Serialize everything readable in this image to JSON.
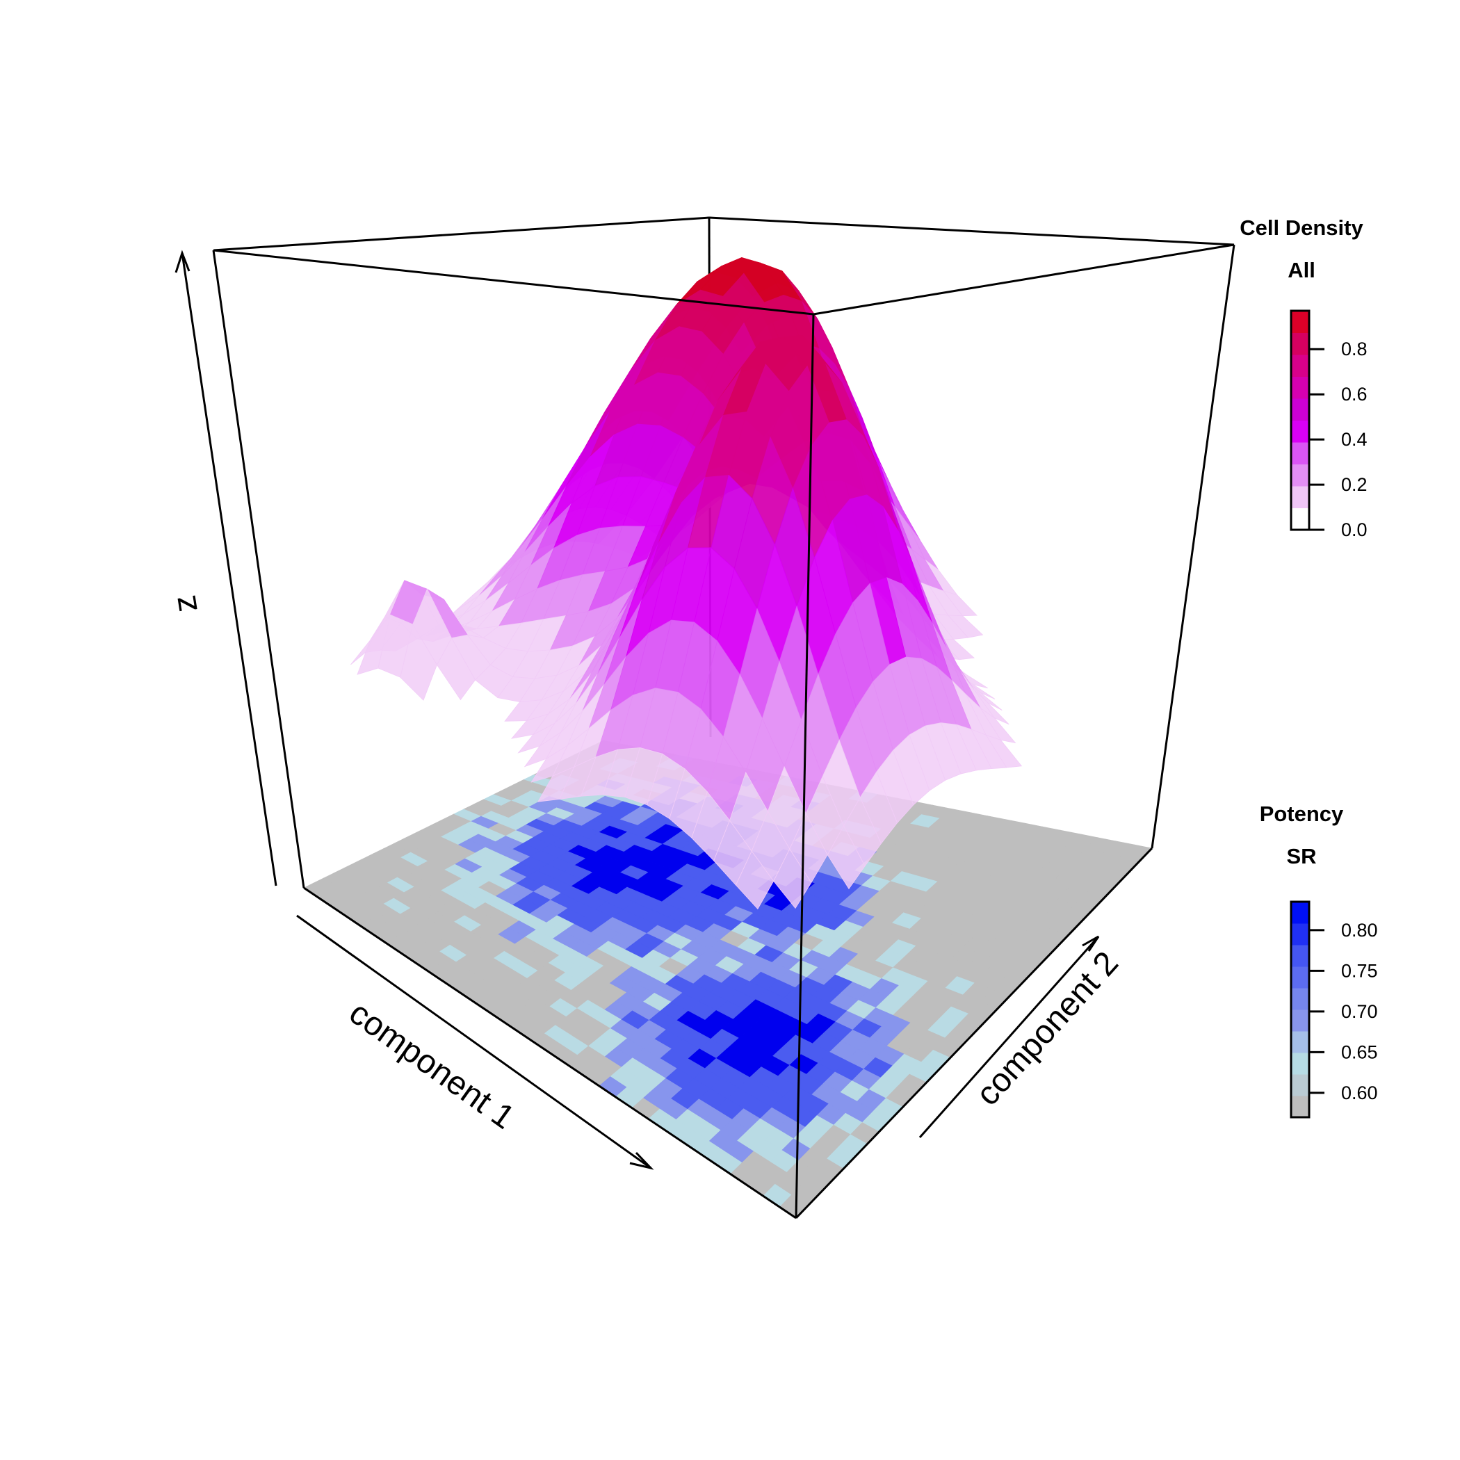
{
  "chart_data": {
    "type": "surface3d",
    "axes": {
      "x_label": "component 1",
      "y_label": "component 2",
      "z_label": "z"
    },
    "surface": {
      "name": "Cell Density",
      "description_peaks": [
        {
          "x": 0.3,
          "y": 0.25,
          "z": 0.97
        },
        {
          "x": 0.7,
          "y": 0.65,
          "z": 0.9
        }
      ],
      "colors": {
        "low": "#f1cdf7",
        "mid": "#d800f5",
        "high": "#d40024"
      }
    },
    "floor": {
      "name": "Potency SR",
      "colors": {
        "grey": "#bebebe",
        "light": "#b9dbe4",
        "mid": "#8795ed",
        "high": "#4b5cf0",
        "max": "#0000ee"
      }
    },
    "legends": [
      {
        "title": "Cell Density",
        "subtitle": "All",
        "ticks": [
          "0.8",
          "0.6",
          "0.4",
          "0.2",
          "0.0"
        ],
        "tick_values": [
          0.8,
          0.6,
          0.4,
          0.2,
          0.0
        ],
        "range": [
          0.0,
          0.97
        ],
        "colors": [
          "#ffffff",
          "#f0c6f7",
          "#e38ef5",
          "#da55f5",
          "#d900f5",
          "#cc00d4",
          "#d600b0",
          "#d8008a",
          "#d60060",
          "#dc0028"
        ]
      },
      {
        "title": "Potency",
        "subtitle": "SR",
        "ticks": [
          "0.80",
          "0.75",
          "0.70",
          "0.65",
          "0.60"
        ],
        "tick_values": [
          0.8,
          0.75,
          0.7,
          0.65,
          0.6
        ],
        "range": [
          0.57,
          0.835
        ],
        "colors": [
          "#bebebe",
          "#bacbd3",
          "#b6dce5",
          "#a5bfe9",
          "#8895ec",
          "#7686ee",
          "#5c6cf0",
          "#4556f2",
          "#2030f4",
          "#0010f6"
        ]
      }
    ]
  }
}
